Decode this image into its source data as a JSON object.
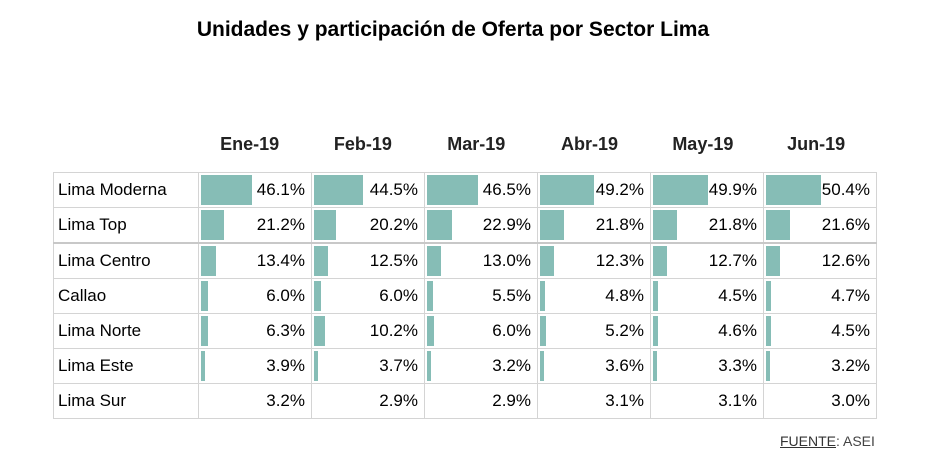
{
  "chart_data": {
    "type": "table",
    "title": "Unidades y participación de Oferta por Sector Lima",
    "columns": [
      "Ene-19",
      "Feb-19",
      "Mar-19",
      "Abr-19",
      "May-19",
      "Jun-19"
    ],
    "rows": [
      {
        "label": "Lima Moderna",
        "values": [
          "46.1%",
          "44.5%",
          "46.5%",
          "49.2%",
          "49.9%",
          "50.4%"
        ],
        "bars": true
      },
      {
        "label": "Lima Top",
        "values": [
          "21.2%",
          "20.2%",
          "22.9%",
          "21.8%",
          "21.8%",
          "21.6%"
        ],
        "bars": true
      },
      {
        "label": "Lima Centro",
        "values": [
          "13.4%",
          "12.5%",
          "13.0%",
          "12.3%",
          "12.7%",
          "12.6%"
        ],
        "bars": true
      },
      {
        "label": "Callao",
        "values": [
          "6.0%",
          "6.0%",
          "5.5%",
          "4.8%",
          "4.5%",
          "4.7%"
        ],
        "bars": true
      },
      {
        "label": "Lima Norte",
        "values": [
          "6.3%",
          "10.2%",
          "6.0%",
          "5.2%",
          "4.6%",
          "4.5%"
        ],
        "bars": true
      },
      {
        "label": "Lima Este",
        "values": [
          "3.9%",
          "3.7%",
          "3.2%",
          "3.6%",
          "3.3%",
          "3.2%"
        ],
        "bars": true
      },
      {
        "label": "Lima Sur",
        "values": [
          "3.2%",
          "2.9%",
          "2.9%",
          "3.1%",
          "3.1%",
          "3.0%"
        ],
        "bars": false
      }
    ],
    "bar_color": "#86bdb6"
  },
  "source": {
    "label": "FUENTE",
    "value": ": ASEI"
  }
}
